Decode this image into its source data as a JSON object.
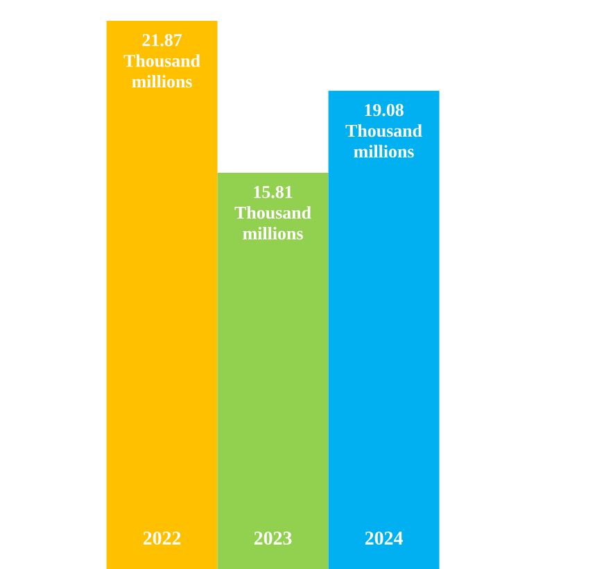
{
  "chart_data": {
    "type": "bar",
    "categories": [
      "2022",
      "2023",
      "2024"
    ],
    "values": [
      21.87,
      15.81,
      19.08
    ],
    "colors": [
      "#ffc000",
      "#92d050",
      "#00b0f0"
    ],
    "value_labels": [
      "21.87 Thousand millions",
      "15.81 Thousand millions",
      "19.08 Thousand millions"
    ]
  }
}
